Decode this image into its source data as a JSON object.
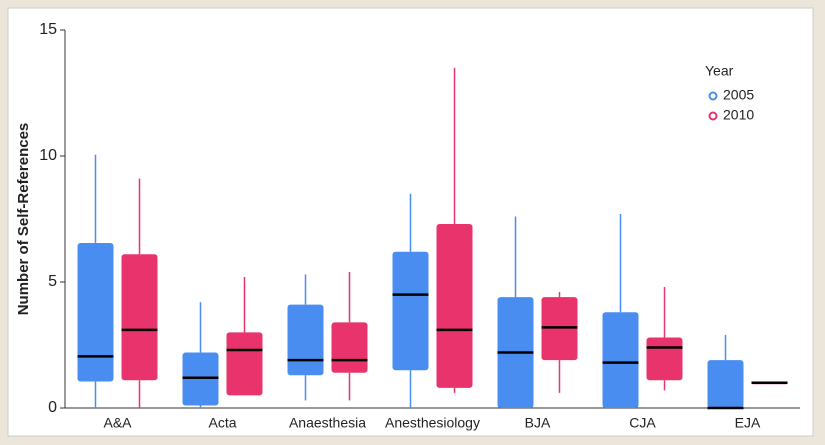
{
  "chart_data": {
    "type": "box",
    "y_label": "Number of Self-References",
    "legend_title": "Year",
    "legend_position": "top-right",
    "categories": [
      "A&A",
      "Acta",
      "Anaesthesia",
      "Anesthesiology",
      "BJA",
      "CJA",
      "EJA"
    ],
    "ylim": [
      0,
      15
    ],
    "yticks": [
      0,
      5,
      10,
      15
    ],
    "series": [
      {
        "name": "2005",
        "color": "#4a8df0",
        "low": [
          0,
          0,
          0.3,
          0,
          0,
          0,
          0
        ],
        "q1": [
          1.05,
          0.1,
          1.3,
          1.5,
          0,
          0,
          0
        ],
        "median": [
          2.05,
          1.2,
          1.9,
          4.5,
          2.2,
          1.8,
          0
        ],
        "q3": [
          6.55,
          2.2,
          4.1,
          6.2,
          4.4,
          3.8,
          1.9
        ],
        "high": [
          10.05,
          4.2,
          5.3,
          8.5,
          7.6,
          7.7,
          2.9
        ]
      },
      {
        "name": "2010",
        "color": "#e8336d",
        "low": [
          0,
          0.5,
          0.3,
          0.6,
          0.6,
          0.7,
          1
        ],
        "q1": [
          1.1,
          0.5,
          1.4,
          0.8,
          1.9,
          1.1,
          1
        ],
        "median": [
          3.1,
          2.3,
          1.9,
          3.1,
          3.2,
          2.4,
          1
        ],
        "q3": [
          6.1,
          3.0,
          3.4,
          7.3,
          4.4,
          2.8,
          1
        ],
        "high": [
          9.1,
          5.2,
          5.4,
          13.5,
          4.6,
          4.8,
          1
        ]
      }
    ]
  }
}
